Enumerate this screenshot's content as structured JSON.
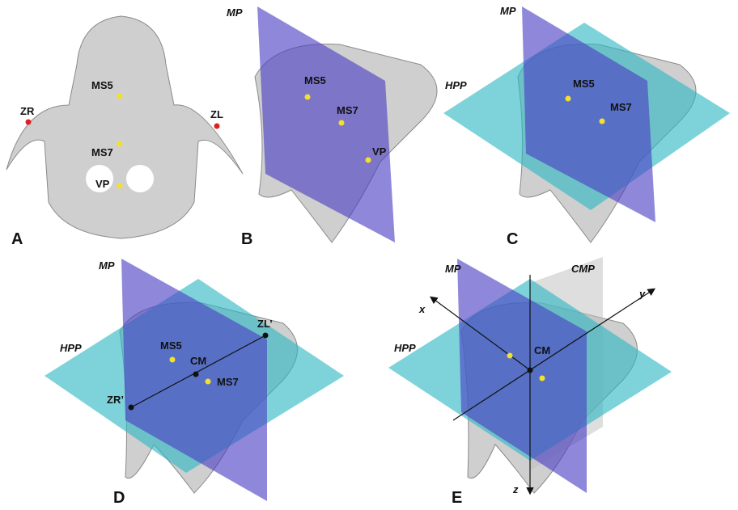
{
  "panels": [
    {
      "letter": "A",
      "landmarks": [
        "MS5",
        "MS7",
        "VP",
        "ZR",
        "ZL"
      ]
    },
    {
      "letter": "B",
      "planes": [
        "MP"
      ],
      "landmarks": [
        "MS5",
        "MS7",
        "VP"
      ]
    },
    {
      "letter": "C",
      "planes": [
        "MP",
        "HPP"
      ],
      "landmarks": [
        "MS5",
        "MS7"
      ]
    },
    {
      "letter": "D",
      "planes": [
        "MP",
        "HPP"
      ],
      "landmarks": [
        "ZL’",
        "MS5",
        "CM",
        "MS7",
        "ZR’"
      ]
    },
    {
      "letter": "E",
      "planes": [
        "MP",
        "CMP",
        "HPP"
      ],
      "axes": [
        "x",
        "y",
        "z"
      ],
      "landmarks": [
        "CM"
      ]
    }
  ]
}
